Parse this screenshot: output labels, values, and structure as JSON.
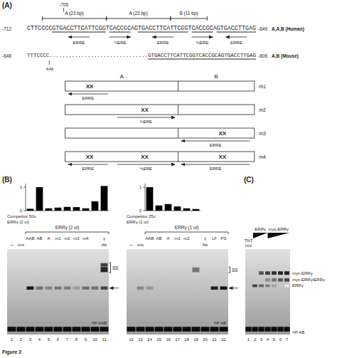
{
  "chart_data": [
    {
      "type": "diagram",
      "title": "(A)",
      "marker_label": "-705",
      "regions": [
        "A (23 bp)",
        "A (23 bp)",
        "B (11 bp)"
      ],
      "sequences": [
        {
          "name": "A,A,B (Human)",
          "start": "-712",
          "end": "-649",
          "sequence": "CTTCCCCGTGACCTTCATTCGGTCACCGCAGTGACCTTCATTCGGTCACCGCAGTGACCTTGAG",
          "elements": [
            "ERRE",
            "½ERE",
            "ERRE",
            "½ERE",
            "ERRE"
          ]
        },
        {
          "name": "A,B (Mouse)",
          "start": "-646",
          "end": "-606",
          "sequence": "TTTCCCC...............................GTGACCTTCATTCGGTCACCGCAGTGACCTTGAG",
          "marker_label": "-646"
        }
      ],
      "box_headers": [
        "A",
        "B"
      ],
      "mutant_mark": "XX",
      "mutants": [
        {
          "name": "m1",
          "sites": [
            "ERRE",
            null,
            null
          ]
        },
        {
          "name": "m2",
          "sites": [
            null,
            "½ERE",
            null
          ]
        },
        {
          "name": "m3",
          "sites": [
            null,
            null,
            "ERRE"
          ]
        },
        {
          "name": "m4",
          "sites": [
            "ERRE",
            "½ERE",
            "ERRE"
          ]
        }
      ],
      "caption": "Figure 2"
    },
    {
      "type": "bar",
      "title": "(B)",
      "values": [
        0.08,
        1.0,
        0.1,
        0.13,
        0.16,
        0.15,
        0.1,
        0.4,
        1.05
      ],
      "color": "#000000",
      "ylim": [
        0,
        1.15
      ],
      "yticks": [
        0,
        1
      ],
      "tick_labels": "y"
    },
    {
      "type": "bar",
      "values": [
        1.0,
        0.22,
        0.28,
        0.18,
        0.1,
        0.07
      ],
      "color": "#000000",
      "ylim": [
        0,
        1.15
      ],
      "yticks": [
        0,
        1
      ],
      "tick_labels": "y"
    },
    {
      "type": "gel",
      "lane_numbers": [
        "1",
        "2",
        "3",
        "4",
        "5",
        "6",
        "7",
        "8",
        "9",
        "10",
        "11"
      ],
      "lane_labels": [
        "–",
        "mix",
        "AAB",
        "AB",
        "A",
        "m1",
        "m2",
        "m3",
        "m4",
        null,
        "γ"
      ],
      "lane_sublabels": [
        null,
        null,
        null,
        null,
        null,
        null,
        null,
        null,
        null,
        null,
        "Ab"
      ],
      "group_label": "ERRγ (2 ul)",
      "annotations": [
        "Competitor 50x",
        "ERRγ (2 ul)"
      ],
      "probe_label": "³²P AAB",
      "bands": [
        {
          "values": [
            null,
            null,
            0.9,
            0.55,
            0.48,
            0.52,
            0.5,
            0.38,
            0.55,
            0.55,
            0.72
          ]
        },
        {
          "label": "SS",
          "values": [
            null,
            null,
            null,
            null,
            null,
            null,
            null,
            null,
            null,
            null,
            0.85
          ]
        },
        {
          "values": [
            null,
            null,
            null,
            null,
            null,
            null,
            null,
            null,
            null,
            null,
            0.75
          ]
        }
      ]
    },
    {
      "type": "gel",
      "lane_numbers": [
        "12",
        "13",
        "14",
        "15",
        "16",
        "17",
        "18",
        "19",
        "20",
        "21",
        "22"
      ],
      "lane_labels": [
        "–",
        "mix",
        "AAB",
        "AB",
        "A",
        "m1",
        "m2",
        null,
        "γ",
        "LF",
        "PS"
      ],
      "lane_sublabels": [
        null,
        null,
        null,
        null,
        null,
        null,
        null,
        null,
        "Ab",
        null,
        null
      ],
      "group_label": "ERRγ (1 ul)",
      "annotations": [
        "Competitor 25x",
        "ERRγ (1 ul)"
      ],
      "probe_label": "³²P AB",
      "bands": [
        {
          "values": [
            null,
            0.45,
            0.4,
            null,
            null,
            null,
            null,
            null,
            null,
            0.88,
            0.92
          ]
        },
        {
          "label": "SS",
          "values": [
            null,
            null,
            null,
            null,
            null,
            null,
            null,
            0.55,
            null,
            null,
            null
          ]
        }
      ]
    },
    {
      "type": "gel",
      "title": "(C)",
      "lane_numbers": [
        "1",
        "2",
        "3",
        "4",
        "5",
        "6",
        "7"
      ],
      "lane_labels": [
        "TNT",
        null,
        null,
        null,
        null,
        null,
        null
      ],
      "lane_sublabels": [
        "mix",
        null,
        null,
        null,
        null,
        null,
        null
      ],
      "wedges": [
        "ERRγ",
        "myc-ERRγ"
      ],
      "probe_label": "³²P AB",
      "bands": [
        {
          "label": "myc-ERRγ",
          "values": [
            null,
            null,
            0.65,
            0.75,
            0.8,
            0.85,
            0.88
          ]
        },
        {
          "label": "myc-ERRγ/ERRγ",
          "values": [
            null,
            null,
            null,
            0.45,
            0.55,
            0.65,
            0.72
          ]
        },
        {
          "label": "ERRγ",
          "values": [
            null,
            0.72,
            0.6,
            0.48,
            0.35,
            0.22,
            0.1
          ]
        }
      ]
    }
  ]
}
